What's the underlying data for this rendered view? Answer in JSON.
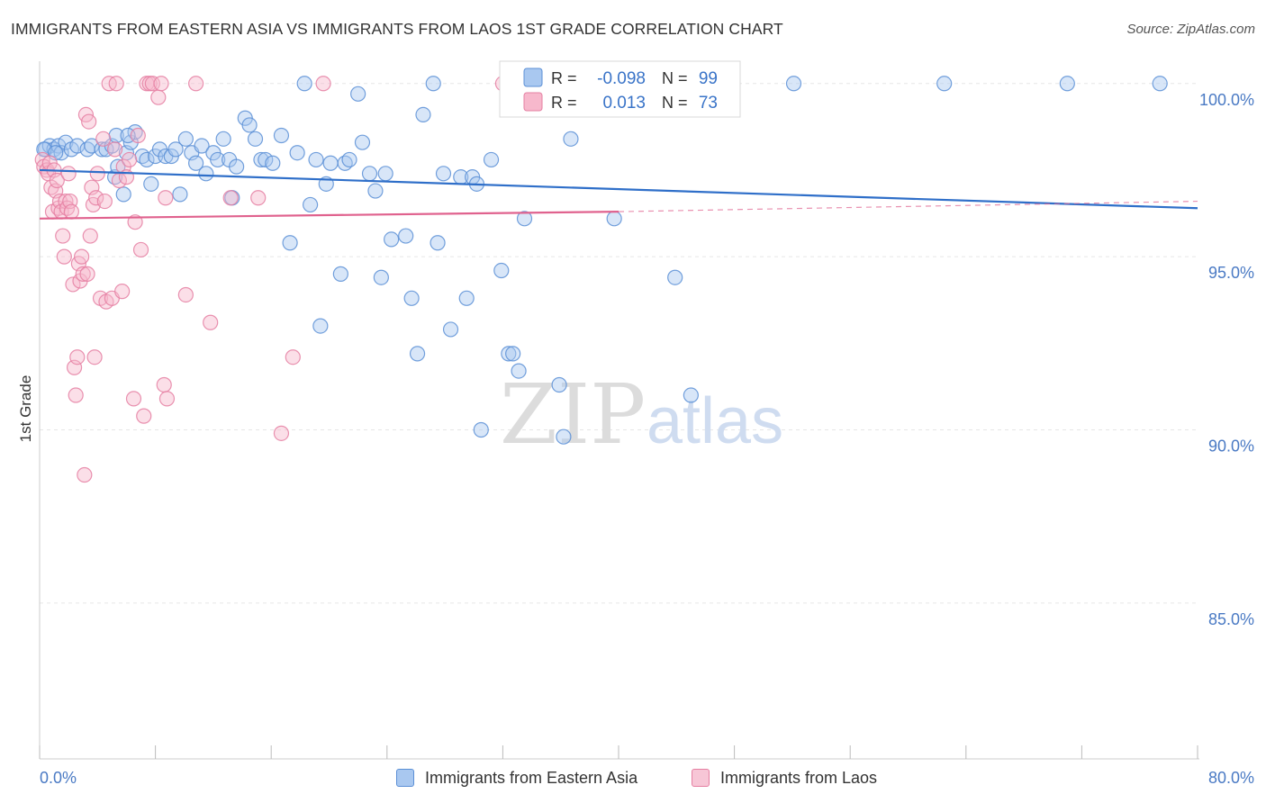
{
  "title": "IMMIGRANTS FROM EASTERN ASIA VS IMMIGRANTS FROM LAOS 1ST GRADE CORRELATION CHART",
  "source": "Source: ZipAtlas.com",
  "watermark": {
    "zip": "ZIP",
    "atlas": "atlas"
  },
  "colors": {
    "blue_fill": "#a9c8f0",
    "blue_stroke": "#5b8fd6",
    "blue_line": "#2f6fc9",
    "pink_fill": "#f7b8cc",
    "pink_stroke": "#e57fa2",
    "pink_line": "#e0628e",
    "axis_label": "#4a7ac4",
    "grid": "#e6e6e6"
  },
  "legend": {
    "rows": [
      {
        "r_label": "R =",
        "r_value": "-0.098",
        "n_label": "N =",
        "n_value": "99"
      },
      {
        "r_label": "R =",
        "r_value": "0.013",
        "n_label": "N =",
        "n_value": "73"
      }
    ]
  },
  "chart_data": {
    "type": "scatter",
    "xlabel": "",
    "ylabel": "1st Grade",
    "xlim": [
      0,
      80
    ],
    "ylim": [
      80.5,
      100.8
    ],
    "x_tick_labels": [
      "0.0%",
      "80.0%"
    ],
    "y_ticks": [
      85,
      90,
      95,
      100
    ],
    "y_tick_labels": [
      "85.0%",
      "90.0%",
      "95.0%",
      "100.0%"
    ],
    "grid": true,
    "legend_position": "top-center",
    "series": [
      {
        "name": "Immigrants from Eastern Asia",
        "color": "#5b8fd6",
        "R": -0.098,
        "N": 99,
        "trend": {
          "x": [
            0,
            80
          ],
          "y": [
            97.5,
            96.4
          ]
        },
        "points": [
          [
            0.4,
            98.1
          ],
          [
            0.7,
            98.2
          ],
          [
            1.0,
            98.1
          ],
          [
            1.3,
            98.2
          ],
          [
            1.5,
            98.0
          ],
          [
            1.8,
            98.3
          ],
          [
            2.2,
            98.1
          ],
          [
            2.6,
            98.2
          ],
          [
            3.3,
            98.1
          ],
          [
            3.6,
            98.2
          ],
          [
            4.3,
            98.1
          ],
          [
            4.6,
            98.1
          ],
          [
            5.0,
            98.2
          ],
          [
            5.2,
            97.3
          ],
          [
            5.4,
            97.6
          ],
          [
            5.3,
            98.5
          ],
          [
            5.8,
            96.8
          ],
          [
            6.0,
            98.0
          ],
          [
            6.3,
            98.3
          ],
          [
            6.6,
            98.6
          ],
          [
            7.1,
            97.9
          ],
          [
            7.4,
            97.8
          ],
          [
            7.7,
            97.1
          ],
          [
            8.0,
            97.9
          ],
          [
            8.3,
            98.1
          ],
          [
            8.7,
            97.9
          ],
          [
            9.1,
            97.9
          ],
          [
            9.4,
            98.1
          ],
          [
            9.7,
            96.8
          ],
          [
            10.1,
            98.4
          ],
          [
            10.5,
            98.0
          ],
          [
            10.8,
            97.7
          ],
          [
            11.2,
            98.2
          ],
          [
            11.5,
            97.4
          ],
          [
            12.0,
            98.0
          ],
          [
            12.3,
            97.8
          ],
          [
            12.7,
            98.4
          ],
          [
            13.1,
            97.8
          ],
          [
            13.3,
            96.7
          ],
          [
            13.6,
            97.6
          ],
          [
            14.2,
            99.0
          ],
          [
            14.5,
            98.8
          ],
          [
            14.9,
            98.4
          ],
          [
            15.3,
            97.8
          ],
          [
            15.6,
            97.8
          ],
          [
            16.1,
            97.7
          ],
          [
            16.7,
            98.5
          ],
          [
            17.3,
            95.4
          ],
          [
            17.8,
            98.0
          ],
          [
            18.3,
            100.0
          ],
          [
            18.7,
            96.5
          ],
          [
            19.1,
            97.8
          ],
          [
            19.4,
            93.0
          ],
          [
            19.8,
            97.1
          ],
          [
            20.8,
            94.5
          ],
          [
            21.1,
            97.7
          ],
          [
            21.4,
            97.8
          ],
          [
            22.0,
            99.7
          ],
          [
            22.3,
            98.3
          ],
          [
            22.8,
            97.4
          ],
          [
            23.2,
            96.9
          ],
          [
            23.6,
            94.4
          ],
          [
            23.9,
            97.4
          ],
          [
            24.3,
            95.5
          ],
          [
            25.3,
            95.6
          ],
          [
            25.7,
            93.8
          ],
          [
            26.1,
            92.2
          ],
          [
            26.5,
            99.1
          ],
          [
            27.2,
            100.0
          ],
          [
            27.5,
            95.4
          ],
          [
            27.9,
            97.4
          ],
          [
            28.4,
            92.9
          ],
          [
            29.1,
            97.3
          ],
          [
            29.5,
            93.8
          ],
          [
            29.9,
            97.3
          ],
          [
            30.2,
            97.1
          ],
          [
            30.5,
            90.0
          ],
          [
            31.2,
            97.8
          ],
          [
            31.9,
            94.6
          ],
          [
            32.4,
            92.2
          ],
          [
            32.7,
            92.2
          ],
          [
            33.1,
            91.7
          ],
          [
            33.5,
            96.1
          ],
          [
            34.3,
            100.0
          ],
          [
            35.9,
            91.3
          ],
          [
            36.2,
            89.8
          ],
          [
            36.7,
            98.4
          ],
          [
            39.7,
            96.1
          ],
          [
            41.0,
            100.0
          ],
          [
            43.9,
            94.4
          ],
          [
            45.0,
            91.0
          ],
          [
            52.1,
            100.0
          ],
          [
            62.5,
            100.0
          ],
          [
            71.0,
            100.0
          ],
          [
            77.4,
            100.0
          ],
          [
            0.3,
            98.1
          ],
          [
            1.1,
            98.0
          ],
          [
            6.1,
            98.5
          ],
          [
            20.1,
            97.7
          ]
        ]
      },
      {
        "name": "Immigrants from Laos",
        "color": "#e57fa2",
        "R": 0.013,
        "N": 73,
        "trend": {
          "x": [
            0,
            40
          ],
          "y": [
            96.1,
            96.3
          ]
        },
        "trend_dashed": {
          "x": [
            40,
            80
          ],
          "y": [
            96.3,
            96.6
          ]
        },
        "points": [
          [
            0.2,
            97.8
          ],
          [
            0.3,
            97.6
          ],
          [
            0.5,
            97.5
          ],
          [
            0.6,
            97.4
          ],
          [
            0.7,
            97.7
          ],
          [
            0.8,
            97.0
          ],
          [
            0.9,
            96.3
          ],
          [
            1.0,
            97.5
          ],
          [
            1.1,
            96.9
          ],
          [
            1.2,
            97.2
          ],
          [
            1.3,
            96.4
          ],
          [
            1.4,
            96.6
          ],
          [
            1.5,
            96.3
          ],
          [
            1.6,
            95.6
          ],
          [
            1.7,
            95.0
          ],
          [
            1.8,
            96.6
          ],
          [
            1.9,
            96.4
          ],
          [
            2.0,
            97.4
          ],
          [
            2.1,
            96.6
          ],
          [
            2.2,
            96.3
          ],
          [
            2.3,
            94.2
          ],
          [
            2.4,
            91.8
          ],
          [
            2.5,
            91.0
          ],
          [
            2.6,
            92.1
          ],
          [
            2.7,
            94.8
          ],
          [
            2.8,
            94.3
          ],
          [
            2.9,
            95.0
          ],
          [
            3.0,
            94.5
          ],
          [
            3.1,
            88.7
          ],
          [
            3.2,
            99.1
          ],
          [
            3.3,
            94.5
          ],
          [
            3.4,
            98.9
          ],
          [
            3.5,
            95.6
          ],
          [
            3.6,
            97.0
          ],
          [
            3.7,
            96.5
          ],
          [
            3.8,
            92.1
          ],
          [
            3.9,
            96.7
          ],
          [
            4.0,
            97.4
          ],
          [
            4.2,
            93.8
          ],
          [
            4.4,
            98.4
          ],
          [
            4.5,
            96.6
          ],
          [
            4.6,
            93.7
          ],
          [
            4.8,
            100.0
          ],
          [
            5.0,
            93.8
          ],
          [
            5.2,
            98.1
          ],
          [
            5.3,
            100.0
          ],
          [
            5.5,
            97.2
          ],
          [
            5.7,
            94.0
          ],
          [
            5.8,
            97.6
          ],
          [
            6.0,
            97.3
          ],
          [
            6.2,
            97.8
          ],
          [
            6.5,
            90.9
          ],
          [
            6.6,
            96.0
          ],
          [
            6.8,
            98.5
          ],
          [
            7.0,
            95.2
          ],
          [
            7.2,
            90.4
          ],
          [
            7.4,
            100.0
          ],
          [
            7.6,
            100.0
          ],
          [
            7.8,
            100.0
          ],
          [
            8.2,
            99.6
          ],
          [
            8.4,
            100.0
          ],
          [
            8.6,
            91.3
          ],
          [
            8.7,
            96.7
          ],
          [
            8.8,
            90.9
          ],
          [
            10.1,
            93.9
          ],
          [
            10.8,
            100.0
          ],
          [
            11.8,
            93.1
          ],
          [
            13.2,
            96.7
          ],
          [
            15.1,
            96.7
          ],
          [
            16.7,
            89.9
          ],
          [
            17.5,
            92.1
          ],
          [
            19.6,
            100.0
          ],
          [
            32.0,
            100.0
          ]
        ]
      }
    ]
  }
}
